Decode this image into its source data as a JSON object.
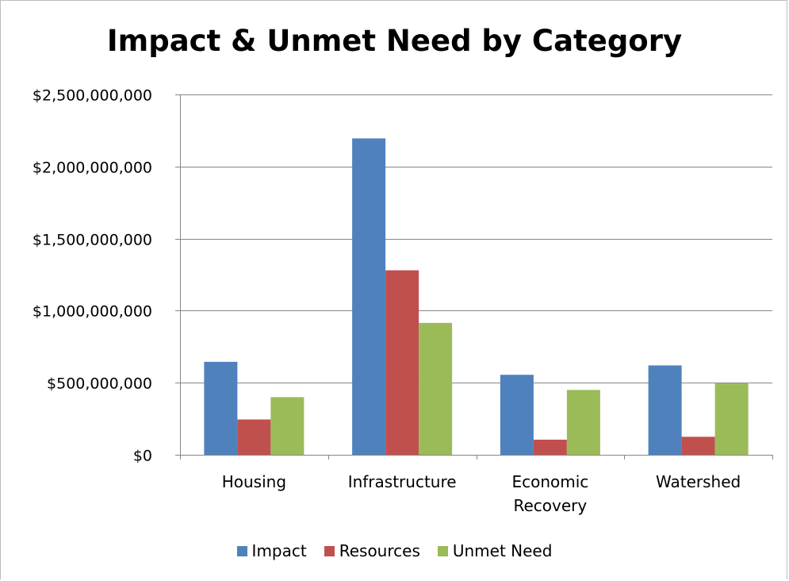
{
  "chart_data": {
    "type": "bar",
    "title": "Impact & Unmet Need by Category",
    "xlabel": "",
    "ylabel": "",
    "categories": [
      "Housing",
      "Infrastructure",
      "Economic Recovery",
      "Watershed"
    ],
    "category_lines": [
      [
        "Housing"
      ],
      [
        "Infrastructure"
      ],
      [
        "Economic",
        "Recovery"
      ],
      [
        "Watershed"
      ]
    ],
    "series": [
      {
        "name": "Impact",
        "color": "#4F81BD",
        "values": [
          645000000,
          2195000000,
          555000000,
          620000000
        ]
      },
      {
        "name": "Resources",
        "color": "#C0504D",
        "values": [
          245000000,
          1280000000,
          105000000,
          125000000
        ]
      },
      {
        "name": "Unmet Need",
        "color": "#9BBB59",
        "values": [
          400000000,
          915000000,
          450000000,
          495000000
        ]
      }
    ],
    "ylim": [
      0,
      2500000000
    ],
    "yticks": [
      0,
      500000000,
      1000000000,
      1500000000,
      2000000000,
      2500000000
    ],
    "ytick_labels": [
      "$0",
      "$500,000,000",
      "$1,000,000,000",
      "$1,500,000,000",
      "$2,000,000,000",
      "$2,500,000,000"
    ],
    "grid": true,
    "legend_position": "bottom"
  }
}
